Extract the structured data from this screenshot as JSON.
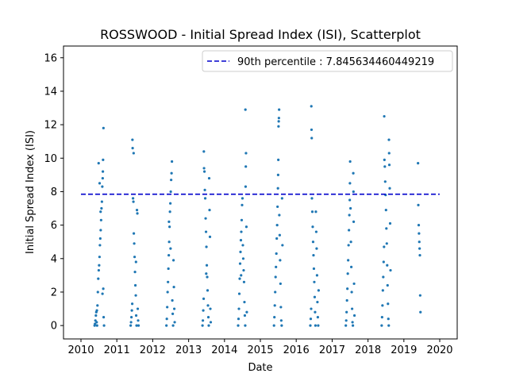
{
  "chart_data": {
    "type": "scatter",
    "title": "ROSSWOOD - Initial Spread Index (ISI), Scatterplot",
    "xlabel": "Date",
    "ylabel": "Initial Spread Index (ISI)",
    "xlim": [
      "2010-01-01",
      "2020-01-01"
    ],
    "ylim": [
      -0.8,
      16.7
    ],
    "x_ticks": [
      "2010",
      "2011",
      "2012",
      "2013",
      "2014",
      "2015",
      "2016",
      "2017",
      "2018",
      "2019",
      "2020"
    ],
    "y_ticks": [
      0,
      2,
      4,
      6,
      8,
      10,
      12,
      14,
      16
    ],
    "grid": false,
    "legend_position": "top-right",
    "colors": {
      "points": "#1f77b4",
      "percentile_line": "#0000cc"
    },
    "percentile_line": {
      "label": "90th percentile : 7.845634460449219",
      "value": 7.845634460449219,
      "x_range": [
        "2010-01-01",
        "2019-12-31"
      ]
    },
    "series": [
      {
        "points": [
          [
            "2010-05-20",
            0.0
          ],
          [
            "2010-05-24",
            0.1
          ],
          [
            "2010-05-28",
            0.3
          ],
          [
            "2010-06-02",
            0.6
          ],
          [
            "2010-06-06",
            0.8
          ],
          [
            "2010-06-10",
            0.2
          ],
          [
            "2010-06-14",
            0.0
          ],
          [
            "2010-06-18",
            1.2
          ],
          [
            "2010-06-22",
            2.0
          ],
          [
            "2010-06-26",
            2.8
          ],
          [
            "2010-07-01",
            3.3
          ],
          [
            "2010-07-05",
            3.6
          ],
          [
            "2010-07-09",
            4.1
          ],
          [
            "2010-07-13",
            4.8
          ],
          [
            "2010-07-17",
            5.2
          ],
          [
            "2010-07-21",
            5.7
          ],
          [
            "2010-07-25",
            6.3
          ],
          [
            "2010-07-29",
            7.0
          ],
          [
            "2010-08-02",
            7.4
          ],
          [
            "2010-08-06",
            8.3
          ],
          [
            "2010-08-10",
            8.8
          ],
          [
            "2010-08-12",
            9.2
          ],
          [
            "2010-08-14",
            9.9
          ],
          [
            "2010-08-16",
            2.2
          ],
          [
            "2010-08-18",
            11.8
          ],
          [
            "2010-08-20",
            0.5
          ],
          [
            "2010-08-24",
            0.0
          ],
          [
            "2010-06-30",
            9.7
          ],
          [
            "2010-07-10",
            8.5
          ],
          [
            "2010-07-20",
            6.8
          ],
          [
            "2010-08-08",
            1.9
          ],
          [
            "2010-06-12",
            0.9
          ],
          [
            "2011-05-22",
            0.0
          ],
          [
            "2011-05-26",
            0.2
          ],
          [
            "2011-05-30",
            0.5
          ],
          [
            "2011-06-03",
            0.9
          ],
          [
            "2011-06-07",
            1.3
          ],
          [
            "2011-06-09",
            11.1
          ],
          [
            "2011-06-11",
            10.6
          ],
          [
            "2011-06-15",
            7.6
          ],
          [
            "2011-06-19",
            7.4
          ],
          [
            "2011-06-23",
            5.5
          ],
          [
            "2011-06-27",
            4.9
          ],
          [
            "2011-07-01",
            4.1
          ],
          [
            "2011-07-05",
            3.2
          ],
          [
            "2011-07-09",
            2.4
          ],
          [
            "2011-07-13",
            1.8
          ],
          [
            "2011-07-17",
            0.6
          ],
          [
            "2011-07-21",
            0.0
          ],
          [
            "2011-07-25",
            6.9
          ],
          [
            "2011-07-29",
            6.7
          ],
          [
            "2011-08-02",
            1.0
          ],
          [
            "2011-08-06",
            0.3
          ],
          [
            "2011-08-10",
            0.0
          ],
          [
            "2011-06-21",
            10.3
          ],
          [
            "2011-07-15",
            3.8
          ],
          [
            "2012-05-20",
            0.0
          ],
          [
            "2012-05-24",
            0.4
          ],
          [
            "2012-05-28",
            1.1
          ],
          [
            "2012-06-01",
            2.0
          ],
          [
            "2012-06-05",
            2.6
          ],
          [
            "2012-06-09",
            3.4
          ],
          [
            "2012-06-13",
            4.2
          ],
          [
            "2012-06-17",
            5.0
          ],
          [
            "2012-06-21",
            5.9
          ],
          [
            "2012-06-25",
            6.8
          ],
          [
            "2012-06-29",
            7.3
          ],
          [
            "2012-07-03",
            8.0
          ],
          [
            "2012-07-07",
            8.7
          ],
          [
            "2012-07-11",
            9.1
          ],
          [
            "2012-07-15",
            9.8
          ],
          [
            "2012-07-19",
            1.5
          ],
          [
            "2012-07-23",
            0.7
          ],
          [
            "2012-07-27",
            0.0
          ],
          [
            "2012-07-31",
            3.9
          ],
          [
            "2012-08-04",
            2.3
          ],
          [
            "2012-08-08",
            1.0
          ],
          [
            "2012-08-12",
            0.2
          ],
          [
            "2012-06-15",
            6.2
          ],
          [
            "2012-07-01",
            4.6
          ],
          [
            "2013-05-22",
            0.0
          ],
          [
            "2013-05-26",
            0.3
          ],
          [
            "2013-05-30",
            0.9
          ],
          [
            "2013-06-03",
            1.6
          ],
          [
            "2013-06-05",
            10.4
          ],
          [
            "2013-06-07",
            9.4
          ],
          [
            "2013-06-11",
            9.2
          ],
          [
            "2013-06-15",
            8.1
          ],
          [
            "2013-06-19",
            7.6
          ],
          [
            "2013-06-23",
            6.4
          ],
          [
            "2013-06-27",
            5.6
          ],
          [
            "2013-07-01",
            4.7
          ],
          [
            "2013-07-05",
            3.6
          ],
          [
            "2013-07-09",
            2.9
          ],
          [
            "2013-07-13",
            2.1
          ],
          [
            "2013-07-17",
            1.2
          ],
          [
            "2013-07-21",
            0.5
          ],
          [
            "2013-07-25",
            0.0
          ],
          [
            "2013-07-29",
            8.8
          ],
          [
            "2013-08-02",
            6.9
          ],
          [
            "2013-08-06",
            5.3
          ],
          [
            "2013-08-10",
            1.0
          ],
          [
            "2013-08-14",
            0.2
          ],
          [
            "2013-06-29",
            3.1
          ],
          [
            "2014-05-20",
            0.0
          ],
          [
            "2014-05-24",
            0.4
          ],
          [
            "2014-05-28",
            1.0
          ],
          [
            "2014-06-01",
            1.9
          ],
          [
            "2014-06-05",
            2.8
          ],
          [
            "2014-06-09",
            3.7
          ],
          [
            "2014-06-13",
            4.4
          ],
          [
            "2014-06-17",
            5.1
          ],
          [
            "2014-06-21",
            5.6
          ],
          [
            "2014-06-25",
            6.3
          ],
          [
            "2014-06-29",
            7.2
          ],
          [
            "2014-07-03",
            7.6
          ],
          [
            "2014-07-07",
            4.8
          ],
          [
            "2014-07-11",
            4.0
          ],
          [
            "2014-07-15",
            3.3
          ],
          [
            "2014-07-19",
            2.6
          ],
          [
            "2014-07-23",
            1.4
          ],
          [
            "2014-07-27",
            0.6
          ],
          [
            "2014-07-31",
            0.0
          ],
          [
            "2014-08-04",
            8.3
          ],
          [
            "2014-08-06",
            9.5
          ],
          [
            "2014-08-08",
            10.3
          ],
          [
            "2014-08-02",
            12.9
          ],
          [
            "2014-08-12",
            5.9
          ],
          [
            "2014-08-16",
            0.8
          ],
          [
            "2014-06-19",
            3.0
          ],
          [
            "2015-05-20",
            0.0
          ],
          [
            "2015-05-24",
            0.5
          ],
          [
            "2015-05-28",
            1.2
          ],
          [
            "2015-06-01",
            2.0
          ],
          [
            "2015-06-05",
            2.9
          ],
          [
            "2015-06-09",
            3.5
          ],
          [
            "2015-06-13",
            4.3
          ],
          [
            "2015-06-17",
            5.2
          ],
          [
            "2015-06-21",
            6.0
          ],
          [
            "2015-06-25",
            7.1
          ],
          [
            "2015-06-29",
            8.2
          ],
          [
            "2015-07-01",
            9.0
          ],
          [
            "2015-07-03",
            9.9
          ],
          [
            "2015-07-05",
            11.9
          ],
          [
            "2015-07-07",
            12.2
          ],
          [
            "2015-07-09",
            12.4
          ],
          [
            "2015-07-11",
            12.9
          ],
          [
            "2015-07-13",
            6.6
          ],
          [
            "2015-07-17",
            5.4
          ],
          [
            "2015-07-21",
            3.9
          ],
          [
            "2015-07-25",
            2.5
          ],
          [
            "2015-07-29",
            1.1
          ],
          [
            "2015-08-02",
            0.3
          ],
          [
            "2015-08-06",
            0.0
          ],
          [
            "2015-08-10",
            7.6
          ],
          [
            "2015-08-14",
            4.8
          ],
          [
            "2016-05-24",
            0.0
          ],
          [
            "2016-05-28",
            0.4
          ],
          [
            "2016-06-01",
            1.0
          ],
          [
            "2016-06-03",
            13.1
          ],
          [
            "2016-06-05",
            11.7
          ],
          [
            "2016-06-07",
            11.2
          ],
          [
            "2016-06-09",
            7.6
          ],
          [
            "2016-06-13",
            6.8
          ],
          [
            "2016-06-17",
            5.9
          ],
          [
            "2016-06-21",
            5.0
          ],
          [
            "2016-06-25",
            4.2
          ],
          [
            "2016-06-29",
            3.4
          ],
          [
            "2016-07-03",
            2.6
          ],
          [
            "2016-07-07",
            1.7
          ],
          [
            "2016-07-11",
            0.8
          ],
          [
            "2016-07-15",
            0.0
          ],
          [
            "2016-07-19",
            6.8
          ],
          [
            "2016-07-23",
            5.6
          ],
          [
            "2016-07-27",
            4.6
          ],
          [
            "2016-07-31",
            3.0
          ],
          [
            "2016-08-04",
            1.4
          ],
          [
            "2016-08-08",
            0.5
          ],
          [
            "2016-08-12",
            0.0
          ],
          [
            "2016-08-16",
            2.1
          ],
          [
            "2017-05-20",
            0.0
          ],
          [
            "2017-05-24",
            0.3
          ],
          [
            "2017-05-28",
            0.8
          ],
          [
            "2017-06-01",
            1.5
          ],
          [
            "2017-06-05",
            2.2
          ],
          [
            "2017-06-09",
            3.1
          ],
          [
            "2017-06-13",
            3.9
          ],
          [
            "2017-06-17",
            4.8
          ],
          [
            "2017-06-21",
            5.7
          ],
          [
            "2017-06-25",
            6.6
          ],
          [
            "2017-06-29",
            7.5
          ],
          [
            "2017-07-01",
            8.5
          ],
          [
            "2017-07-03",
            9.8
          ],
          [
            "2017-07-07",
            7.0
          ],
          [
            "2017-07-11",
            5.0
          ],
          [
            "2017-07-15",
            3.5
          ],
          [
            "2017-07-19",
            2.0
          ],
          [
            "2017-07-23",
            1.0
          ],
          [
            "2017-07-27",
            0.2
          ],
          [
            "2017-07-31",
            0.0
          ],
          [
            "2017-08-04",
            9.1
          ],
          [
            "2017-08-06",
            8.0
          ],
          [
            "2017-08-08",
            6.2
          ],
          [
            "2017-08-12",
            2.5
          ],
          [
            "2017-08-16",
            0.6
          ],
          [
            "2018-05-20",
            0.0
          ],
          [
            "2018-05-24",
            0.5
          ],
          [
            "2018-05-28",
            1.2
          ],
          [
            "2018-06-01",
            2.1
          ],
          [
            "2018-06-05",
            2.9
          ],
          [
            "2018-06-09",
            3.8
          ],
          [
            "2018-06-13",
            4.7
          ],
          [
            "2018-06-15",
            12.5
          ],
          [
            "2018-06-17",
            9.9
          ],
          [
            "2018-06-21",
            9.5
          ],
          [
            "2018-06-25",
            8.6
          ],
          [
            "2018-06-29",
            7.8
          ],
          [
            "2018-07-03",
            6.9
          ],
          [
            "2018-07-07",
            5.8
          ],
          [
            "2018-07-11",
            4.9
          ],
          [
            "2018-07-15",
            3.6
          ],
          [
            "2018-07-19",
            2.4
          ],
          [
            "2018-07-23",
            1.3
          ],
          [
            "2018-07-27",
            0.4
          ],
          [
            "2018-07-31",
            0.0
          ],
          [
            "2018-08-02",
            11.1
          ],
          [
            "2018-08-04",
            10.3
          ],
          [
            "2018-08-06",
            9.6
          ],
          [
            "2018-08-10",
            8.2
          ],
          [
            "2018-08-14",
            6.1
          ],
          [
            "2018-08-18",
            3.3
          ],
          [
            "2019-05-25",
            9.7
          ],
          [
            "2019-05-28",
            7.2
          ],
          [
            "2019-06-01",
            6.0
          ],
          [
            "2019-06-04",
            5.5
          ],
          [
            "2019-06-07",
            5.0
          ],
          [
            "2019-06-10",
            4.6
          ],
          [
            "2019-06-13",
            4.2
          ],
          [
            "2019-06-16",
            1.8
          ],
          [
            "2019-06-19",
            0.8
          ]
        ]
      }
    ]
  }
}
